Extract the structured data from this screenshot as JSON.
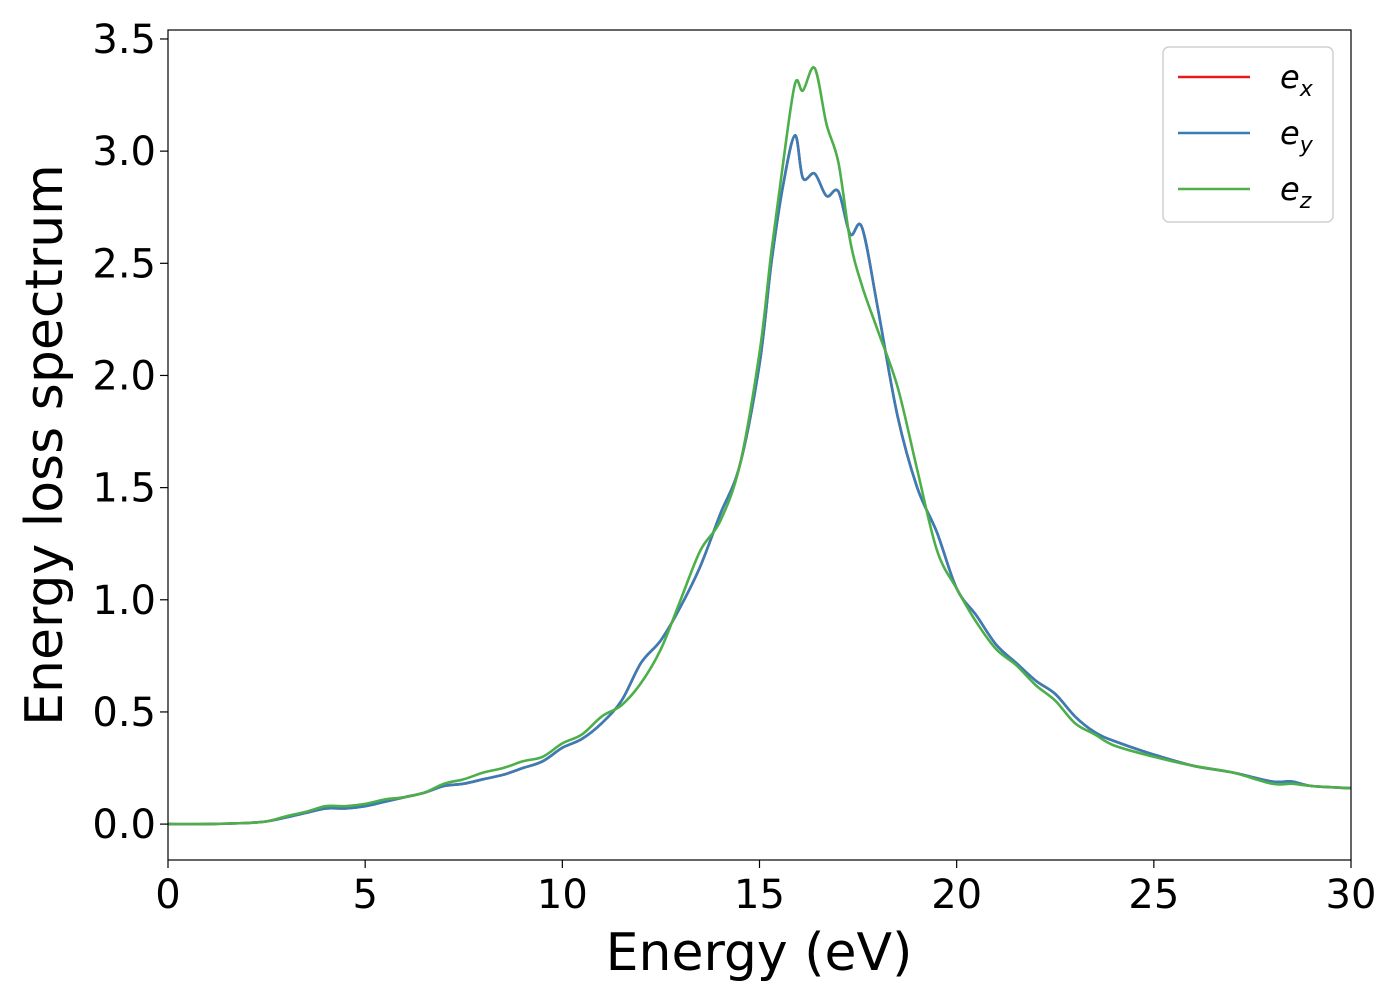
{
  "chart_data": {
    "type": "line",
    "xlabel": "Energy (eV)",
    "ylabel": "Energy loss spectrum",
    "xlim": [
      0,
      30
    ],
    "ylim": [
      -0.16,
      3.54
    ],
    "xticks": [
      0,
      5,
      10,
      15,
      20,
      25,
      30
    ],
    "yticks": [
      0.0,
      0.5,
      1.0,
      1.5,
      2.0,
      2.5,
      3.0,
      3.5
    ],
    "xtick_labels": [
      "0",
      "5",
      "10",
      "15",
      "20",
      "25",
      "30"
    ],
    "ytick_labels": [
      "0.0",
      "0.5",
      "1.0",
      "1.5",
      "2.0",
      "2.5",
      "3.0",
      "3.5"
    ],
    "grid": false,
    "legend_position": "top-right",
    "series": [
      {
        "name": "e",
        "subscript": "x",
        "color": "#e41a1c",
        "x": [
          0,
          1,
          2,
          2.5,
          3,
          3.5,
          4,
          4.5,
          5,
          5.5,
          6,
          6.5,
          7,
          7.5,
          8,
          8.5,
          9,
          9.5,
          10,
          10.5,
          11,
          11.5,
          12,
          12.5,
          13,
          13.5,
          14,
          14.5,
          15,
          15.3,
          15.6,
          15.9,
          16.1,
          16.4,
          16.7,
          17,
          17.3,
          17.6,
          18,
          18.5,
          19,
          19.5,
          20,
          20.5,
          21,
          21.5,
          22,
          22.5,
          23,
          23.5,
          24,
          25,
          26,
          27,
          28,
          28.5,
          29,
          30
        ],
        "values": [
          0.0,
          0.0,
          0.005,
          0.012,
          0.03,
          0.05,
          0.07,
          0.07,
          0.08,
          0.1,
          0.12,
          0.14,
          0.17,
          0.18,
          0.2,
          0.22,
          0.25,
          0.28,
          0.34,
          0.38,
          0.45,
          0.55,
          0.72,
          0.82,
          0.97,
          1.15,
          1.38,
          1.6,
          2.05,
          2.5,
          2.85,
          3.07,
          2.88,
          2.9,
          2.8,
          2.82,
          2.63,
          2.66,
          2.3,
          1.82,
          1.5,
          1.3,
          1.05,
          0.93,
          0.8,
          0.72,
          0.64,
          0.58,
          0.48,
          0.41,
          0.37,
          0.31,
          0.26,
          0.23,
          0.19,
          0.19,
          0.17,
          0.16
        ]
      },
      {
        "name": "e",
        "subscript": "y",
        "color": "#377eb8",
        "x": [
          0,
          1,
          2,
          2.5,
          3,
          3.5,
          4,
          4.5,
          5,
          5.5,
          6,
          6.5,
          7,
          7.5,
          8,
          8.5,
          9,
          9.5,
          10,
          10.5,
          11,
          11.5,
          12,
          12.5,
          13,
          13.5,
          14,
          14.5,
          15,
          15.3,
          15.6,
          15.9,
          16.1,
          16.4,
          16.7,
          17,
          17.3,
          17.6,
          18,
          18.5,
          19,
          19.5,
          20,
          20.5,
          21,
          21.5,
          22,
          22.5,
          23,
          23.5,
          24,
          25,
          26,
          27,
          28,
          28.5,
          29,
          30
        ],
        "values": [
          0.0,
          0.0,
          0.005,
          0.012,
          0.03,
          0.05,
          0.07,
          0.07,
          0.08,
          0.1,
          0.12,
          0.14,
          0.17,
          0.18,
          0.2,
          0.22,
          0.25,
          0.28,
          0.34,
          0.38,
          0.45,
          0.55,
          0.72,
          0.82,
          0.97,
          1.15,
          1.38,
          1.6,
          2.05,
          2.5,
          2.85,
          3.07,
          2.88,
          2.9,
          2.8,
          2.82,
          2.63,
          2.66,
          2.3,
          1.82,
          1.5,
          1.3,
          1.05,
          0.93,
          0.8,
          0.72,
          0.64,
          0.58,
          0.48,
          0.41,
          0.37,
          0.31,
          0.26,
          0.23,
          0.19,
          0.19,
          0.17,
          0.16
        ]
      },
      {
        "name": "e",
        "subscript": "z",
        "color": "#4daf4a",
        "x": [
          0,
          1,
          2,
          2.5,
          3,
          3.5,
          4,
          4.5,
          5,
          5.5,
          6,
          6.5,
          7,
          7.5,
          8,
          8.5,
          9,
          9.5,
          10,
          10.5,
          11,
          11.5,
          12,
          12.5,
          13,
          13.5,
          14,
          14.5,
          15,
          15.3,
          15.6,
          15.9,
          16.1,
          16.4,
          16.7,
          17,
          17.3,
          17.6,
          18,
          18.5,
          19,
          19.5,
          20,
          20.5,
          21,
          21.5,
          22,
          22.5,
          23,
          23.5,
          24,
          25,
          26,
          27,
          28,
          28.5,
          29,
          30
        ],
        "values": [
          0.0,
          0.0,
          0.005,
          0.012,
          0.035,
          0.055,
          0.08,
          0.08,
          0.09,
          0.11,
          0.12,
          0.14,
          0.18,
          0.2,
          0.23,
          0.25,
          0.28,
          0.3,
          0.36,
          0.4,
          0.48,
          0.53,
          0.63,
          0.78,
          1.0,
          1.22,
          1.35,
          1.6,
          2.1,
          2.55,
          2.95,
          3.3,
          3.27,
          3.37,
          3.12,
          2.95,
          2.6,
          2.4,
          2.2,
          1.95,
          1.58,
          1.22,
          1.05,
          0.9,
          0.78,
          0.71,
          0.62,
          0.55,
          0.45,
          0.4,
          0.35,
          0.3,
          0.26,
          0.23,
          0.18,
          0.18,
          0.17,
          0.16
        ]
      }
    ]
  }
}
